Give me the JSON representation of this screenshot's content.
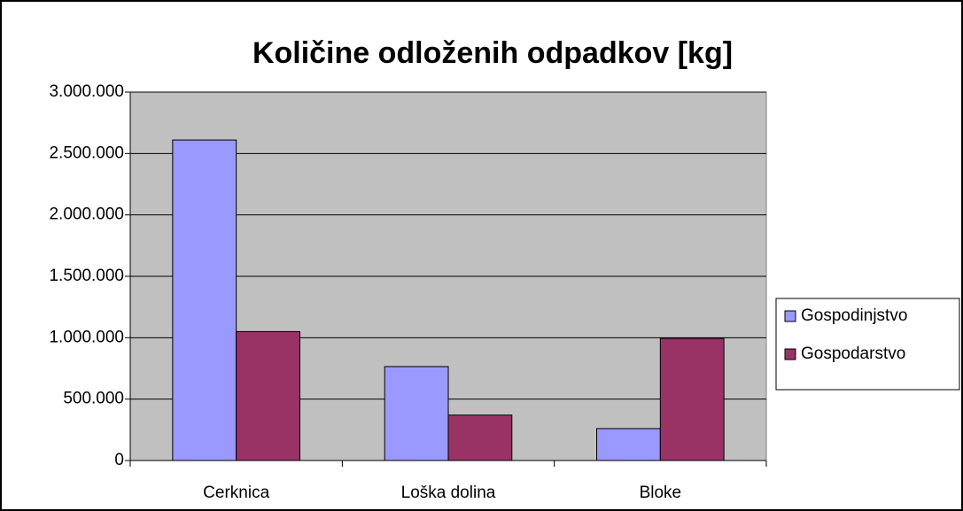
{
  "chart_data": {
    "type": "bar",
    "title": "Količine odloženih odpadkov [kg]",
    "categories": [
      "Cerknica",
      "Loška dolina",
      "Bloke"
    ],
    "series": [
      {
        "name": "Gospodinjstvo",
        "color": "#9999ff",
        "values": [
          2610000,
          765000,
          260000
        ]
      },
      {
        "name": "Gospodarstvo",
        "color": "#993366",
        "values": [
          1050000,
          370000,
          995000
        ]
      }
    ],
    "ylim": [
      0,
      3000000
    ],
    "yticks": [
      0,
      {
        "value": 500000,
        "label": "500.000"
      },
      {
        "value": 1000000,
        "label": "1.000.000"
      },
      {
        "value": 1500000,
        "label": "1.500.000"
      },
      {
        "value": 2000000,
        "label": "2.000.000"
      },
      {
        "value": 2500000,
        "label": "2.500.000"
      },
      {
        "value": 3000000,
        "label": "3.000.000"
      }
    ],
    "grid": true,
    "legend": "right",
    "plot_background": "#c0c0c0"
  }
}
